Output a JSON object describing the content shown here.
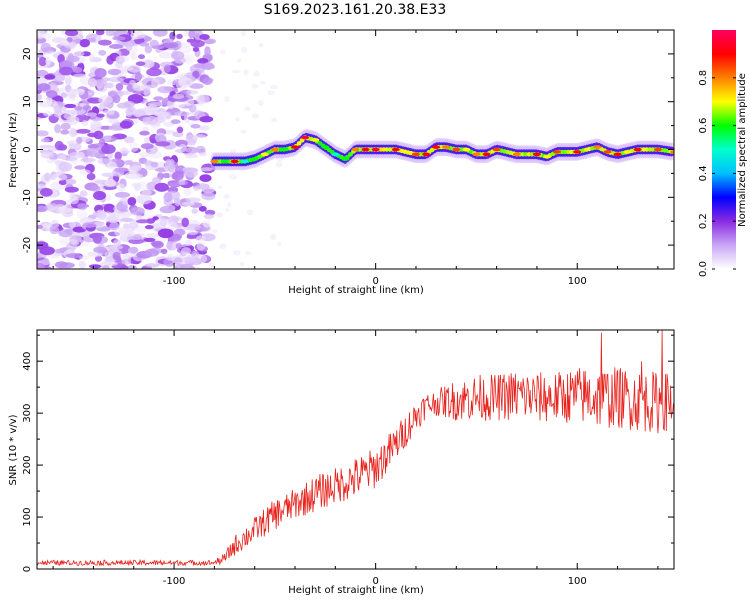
{
  "title": "S169.2023.161.20.38.E33",
  "chart_data": [
    {
      "type": "heatmap",
      "xlabel": "Height of straight line (km)",
      "ylabel": "Frequency (Hz)",
      "xlim": [
        -168,
        148
      ],
      "ylim": [
        -25,
        25
      ],
      "xticks": [
        -100,
        0,
        100
      ],
      "yticks": [
        -20,
        -10,
        0,
        10,
        20
      ],
      "colorbar": {
        "label": "Normalized spectral amplitude",
        "range": [
          0,
          1
        ],
        "ticks": [
          0.0,
          0.2,
          0.4,
          0.6,
          0.8
        ],
        "colors": [
          "#ffffff",
          "#c9a6f5",
          "#8a2be2",
          "#0000ff",
          "#00bfff",
          "#00ffcc",
          "#00ff00",
          "#ffff00",
          "#ff8000",
          "#ff0000",
          "#ff0060"
        ]
      },
      "noise_region_x": [
        -168,
        -82
      ],
      "ridge": {
        "x": [
          -80,
          -75,
          -70,
          -65,
          -60,
          -55,
          -50,
          -45,
          -40,
          -35,
          -30,
          -25,
          -20,
          -15,
          -10,
          -5,
          0,
          10,
          20,
          25,
          30,
          35,
          40,
          45,
          50,
          55,
          60,
          70,
          80,
          85,
          90,
          100,
          110,
          115,
          120,
          125,
          130,
          140,
          148
        ],
        "freq": [
          -2.5,
          -2.5,
          -2.5,
          -2.5,
          -2,
          -1,
          0,
          0,
          0.5,
          2.5,
          2,
          0.5,
          -1,
          -2,
          0,
          0,
          0,
          0,
          -1,
          -1,
          0.5,
          0.5,
          0,
          0,
          -1,
          -1,
          0,
          -1,
          -1,
          -1.5,
          -0.5,
          -0.5,
          0.5,
          -0.5,
          -1,
          -0.5,
          0,
          0,
          -0.5
        ],
        "amp": [
          0.8,
          0.6,
          0.9,
          0.5,
          0.6,
          0.7,
          0.8,
          0.6,
          0.9,
          0.95,
          0.7,
          0.6,
          0.5,
          0.6,
          0.8,
          0.9,
          0.95,
          0.9,
          0.85,
          0.9,
          0.9,
          0.8,
          0.85,
          0.7,
          0.8,
          0.9,
          0.85,
          0.8,
          0.9,
          0.7,
          0.85,
          0.9,
          0.8,
          0.85,
          0.9,
          0.7,
          0.9,
          0.85,
          0.8
        ]
      }
    },
    {
      "type": "line",
      "xlabel": "Height of straight line (km)",
      "ylabel": "SNR (10 * v/v)",
      "xlim": [
        -168,
        148
      ],
      "ylim": [
        0,
        460
      ],
      "xticks": [
        -100,
        0,
        100
      ],
      "yticks": [
        0,
        100,
        200,
        300,
        400
      ],
      "color": "#e8221d",
      "envelope": {
        "x": [
          -168,
          -80,
          -75,
          -70,
          -60,
          -50,
          -40,
          -30,
          -20,
          -10,
          0,
          10,
          20,
          25,
          30,
          40,
          50,
          60,
          70,
          80,
          90,
          100,
          110,
          120,
          130,
          140,
          148
        ],
        "mean": [
          12,
          12,
          20,
          45,
          75,
          105,
          125,
          145,
          160,
          175,
          195,
          240,
          295,
          315,
          320,
          325,
          330,
          330,
          335,
          330,
          330,
          335,
          330,
          330,
          325,
          320,
          325
        ],
        "noise": [
          5,
          5,
          10,
          20,
          25,
          30,
          30,
          35,
          35,
          40,
          40,
          35,
          30,
          25,
          25,
          40,
          45,
          45,
          50,
          50,
          50,
          55,
          60,
          60,
          60,
          60,
          55
        ]
      },
      "peaks": [
        {
          "x": 112,
          "y": 455
        },
        {
          "x": 142,
          "y": 460
        },
        {
          "x": 132,
          "y": 400
        }
      ]
    }
  ]
}
